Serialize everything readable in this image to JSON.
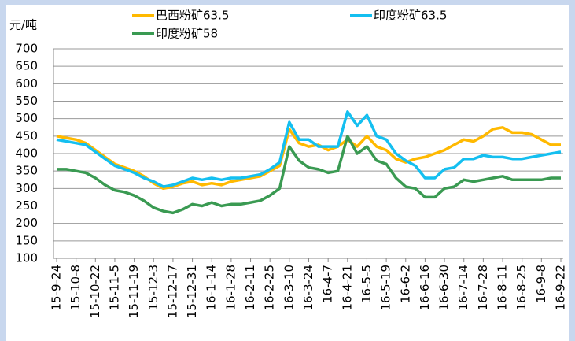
{
  "chart_data": {
    "type": "line",
    "y_label": "元/吨",
    "categories": [
      "15-9-24",
      null,
      "15-10-8",
      null,
      "15-10-22",
      null,
      "15-11-5",
      null,
      "15-11-19",
      null,
      "15-12-3",
      null,
      "15-12-17",
      null,
      "15-12-31",
      null,
      "16-1-14",
      null,
      "16-1-28",
      null,
      "16-2-11",
      null,
      "16-2-25",
      null,
      "16-3-10",
      null,
      "16-3-24",
      null,
      "16-4-7",
      null,
      "16-4-21",
      null,
      "16-5-5",
      null,
      "16-5-19",
      null,
      "16-6-2",
      null,
      "16-6-16",
      null,
      "16-6-30",
      null,
      "16-7-14",
      null,
      "16-7-28",
      null,
      "16-8-11",
      null,
      "16-8-25",
      null,
      "16-9-8",
      null,
      "16-9-22"
    ],
    "series": [
      {
        "name": "巴西粉矿63.5",
        "color": "#ffb900",
        "values": [
          450,
          445,
          440,
          430,
          410,
          390,
          370,
          360,
          350,
          335,
          315,
          300,
          305,
          315,
          320,
          310,
          315,
          310,
          320,
          325,
          330,
          335,
          350,
          365,
          470,
          430,
          420,
          425,
          410,
          420,
          440,
          420,
          450,
          420,
          410,
          385,
          375,
          385,
          390,
          400,
          410,
          425,
          440,
          435,
          450,
          470,
          475,
          460,
          460,
          455,
          440,
          425,
          425
        ]
      },
      {
        "name": "印度粉矿63.5",
        "color": "#14bff0",
        "values": [
          440,
          435,
          430,
          425,
          405,
          385,
          365,
          355,
          345,
          330,
          320,
          305,
          310,
          320,
          330,
          325,
          330,
          325,
          330,
          330,
          335,
          340,
          355,
          375,
          490,
          440,
          440,
          420,
          420,
          420,
          520,
          480,
          510,
          450,
          440,
          400,
          380,
          365,
          330,
          330,
          355,
          360,
          385,
          385,
          395,
          390,
          390,
          385,
          385,
          390,
          395,
          400,
          405
        ]
      },
      {
        "name": "印度粉矿58",
        "color": "#3a9a52",
        "values": [
          355,
          355,
          350,
          345,
          330,
          310,
          295,
          290,
          280,
          265,
          245,
          235,
          230,
          240,
          255,
          250,
          260,
          250,
          255,
          255,
          260,
          265,
          280,
          300,
          420,
          380,
          360,
          355,
          345,
          350,
          450,
          400,
          420,
          380,
          370,
          330,
          305,
          300,
          275,
          275,
          300,
          305,
          325,
          320,
          325,
          330,
          335,
          325,
          325,
          325,
          325,
          330,
          330
        ]
      }
    ],
    "ylim": [
      100,
      700
    ],
    "yticks": [
      100,
      150,
      200,
      250,
      300,
      350,
      400,
      450,
      500,
      550,
      600,
      650,
      700
    ],
    "grid": true
  }
}
